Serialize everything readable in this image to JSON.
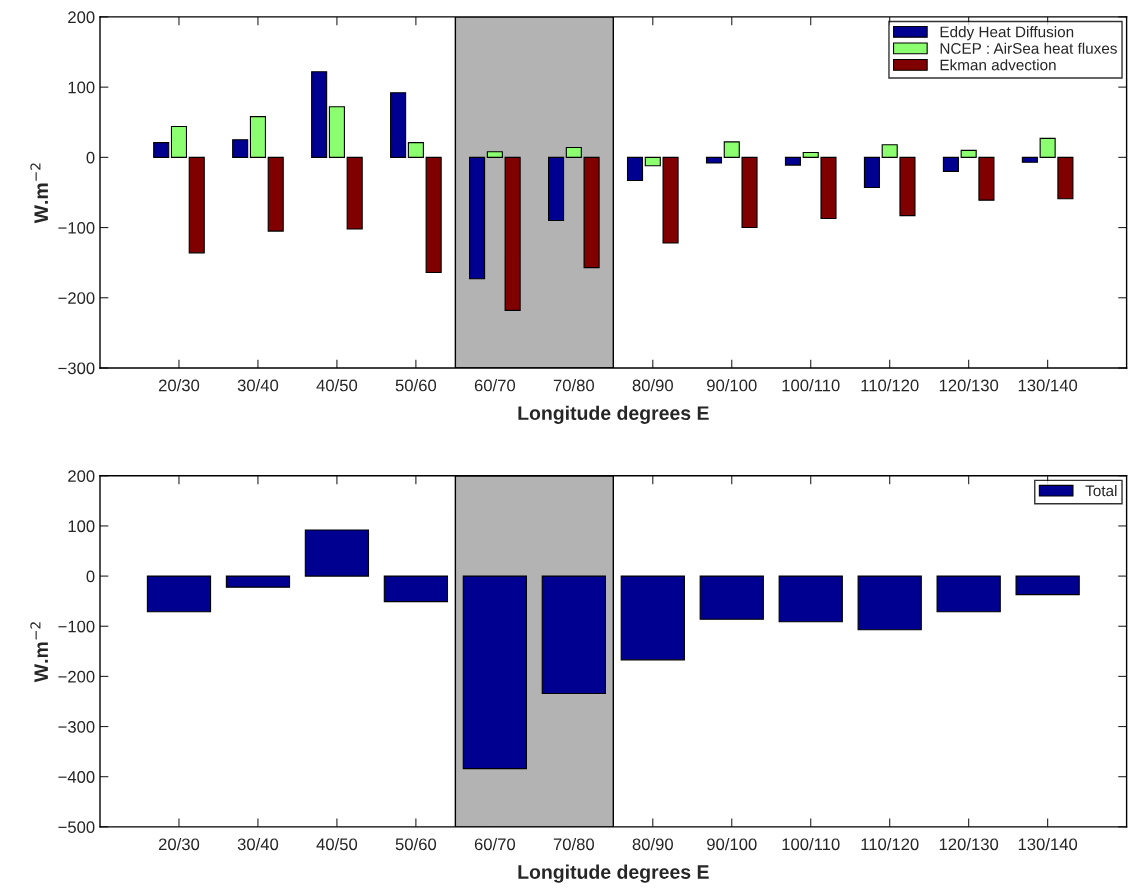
{
  "chart_data": [
    {
      "type": "bar",
      "xlabel": "Longitude degrees E",
      "ylabel": "W.m$^{−2}$",
      "categories": [
        "20/30",
        "30/40",
        "40/50",
        "50/60",
        "60/70",
        "70/80",
        "80/90",
        "90/100",
        "100/110",
        "110/120",
        "120/130",
        "130/140"
      ],
      "series": [
        {
          "name": "Eddy Heat Diffusion",
          "color": "#000090",
          "values": [
            21,
            25,
            122,
            92,
            -173,
            -90,
            -33,
            -8,
            -11,
            -43,
            -20,
            -7
          ]
        },
        {
          "name": "NCEP : AirSea heat fluxes",
          "color": "#8cff70",
          "values": [
            44,
            58,
            72,
            21,
            8,
            14,
            -12,
            22,
            7,
            18,
            10,
            27
          ]
        },
        {
          "name": "Ekman advection",
          "color": "#800000",
          "values": [
            -136,
            -105,
            -102,
            -164,
            -218,
            -157,
            -122,
            -100,
            -87,
            -83,
            -61,
            -59
          ]
        }
      ],
      "ylim": [
        -300,
        200
      ],
      "yticks": [
        -300,
        -200,
        -100,
        0,
        100,
        200
      ],
      "bands": [
        {
          "axis": "x",
          "from": "60/70",
          "to": "70/80",
          "color": "#b3b3b3"
        }
      ],
      "legend": "top right",
      "grid": false
    },
    {
      "type": "bar",
      "xlabel": "Longitude degrees E",
      "ylabel": "W.m$^{−2}$",
      "categories": [
        "20/30",
        "30/40",
        "40/50",
        "50/60",
        "60/70",
        "70/80",
        "80/90",
        "90/100",
        "100/110",
        "110/120",
        "120/130",
        "130/140"
      ],
      "series": [
        {
          "name": "Total",
          "color": "#000090",
          "values": [
            -71,
            -22,
            92,
            -51,
            -384,
            -234,
            -167,
            -86,
            -91,
            -107,
            -71,
            -37
          ]
        }
      ],
      "ylim": [
        -500,
        200
      ],
      "yticks": [
        -500,
        -400,
        -300,
        -200,
        -100,
        0,
        100,
        200
      ],
      "bands": [
        {
          "axis": "x",
          "from": "60/70",
          "to": "70/80",
          "color": "#b3b3b3"
        }
      ],
      "legend": "top right",
      "grid": false
    }
  ]
}
